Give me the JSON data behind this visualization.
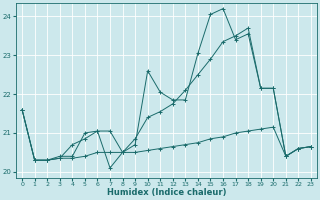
{
  "xlabel": "Humidex (Indice chaleur)",
  "bg_color": "#cce8ec",
  "line_color": "#1a6b6b",
  "grid_color": "#ffffff",
  "xlim": [
    -0.5,
    23.5
  ],
  "ylim": [
    19.85,
    24.35
  ],
  "yticks": [
    20,
    21,
    22,
    23,
    24
  ],
  "xticks": [
    0,
    1,
    2,
    3,
    4,
    5,
    6,
    7,
    8,
    9,
    10,
    11,
    12,
    13,
    14,
    15,
    16,
    17,
    18,
    19,
    20,
    21,
    22,
    23
  ],
  "series1": [
    [
      0,
      21.6
    ],
    [
      1,
      20.3
    ],
    [
      2,
      20.3
    ],
    [
      3,
      20.4
    ],
    [
      4,
      20.4
    ],
    [
      5,
      21.0
    ],
    [
      6,
      21.05
    ],
    [
      7,
      20.1
    ],
    [
      8,
      20.5
    ],
    [
      9,
      20.7
    ],
    [
      10,
      22.6
    ],
    [
      11,
      22.05
    ],
    [
      12,
      21.85
    ],
    [
      13,
      21.85
    ],
    [
      14,
      23.05
    ],
    [
      15,
      24.05
    ],
    [
      16,
      24.2
    ],
    [
      17,
      23.4
    ],
    [
      18,
      23.55
    ],
    [
      19,
      22.15
    ],
    [
      20,
      22.15
    ],
    [
      21,
      20.4
    ],
    [
      22,
      20.6
    ],
    [
      23,
      20.65
    ]
  ],
  "series2": [
    [
      0,
      21.6
    ],
    [
      1,
      20.3
    ],
    [
      2,
      20.3
    ],
    [
      3,
      20.35
    ],
    [
      4,
      20.7
    ],
    [
      5,
      20.85
    ],
    [
      6,
      21.05
    ],
    [
      7,
      21.05
    ],
    [
      8,
      20.5
    ],
    [
      9,
      20.85
    ],
    [
      10,
      21.4
    ],
    [
      11,
      21.55
    ],
    [
      12,
      21.75
    ],
    [
      13,
      22.1
    ],
    [
      14,
      22.5
    ],
    [
      15,
      22.9
    ],
    [
      16,
      23.35
    ],
    [
      17,
      23.5
    ],
    [
      18,
      23.7
    ],
    [
      19,
      22.15
    ],
    [
      20,
      22.15
    ],
    [
      21,
      20.4
    ],
    [
      22,
      20.6
    ],
    [
      23,
      20.65
    ]
  ],
  "series3": [
    [
      0,
      21.6
    ],
    [
      1,
      20.3
    ],
    [
      2,
      20.3
    ],
    [
      3,
      20.35
    ],
    [
      4,
      20.35
    ],
    [
      5,
      20.4
    ],
    [
      6,
      20.5
    ],
    [
      7,
      20.5
    ],
    [
      8,
      20.5
    ],
    [
      9,
      20.5
    ],
    [
      10,
      20.55
    ],
    [
      11,
      20.6
    ],
    [
      12,
      20.65
    ],
    [
      13,
      20.7
    ],
    [
      14,
      20.75
    ],
    [
      15,
      20.85
    ],
    [
      16,
      20.9
    ],
    [
      17,
      21.0
    ],
    [
      18,
      21.05
    ],
    [
      19,
      21.1
    ],
    [
      20,
      21.15
    ],
    [
      21,
      20.4
    ],
    [
      22,
      20.6
    ],
    [
      23,
      20.65
    ]
  ]
}
